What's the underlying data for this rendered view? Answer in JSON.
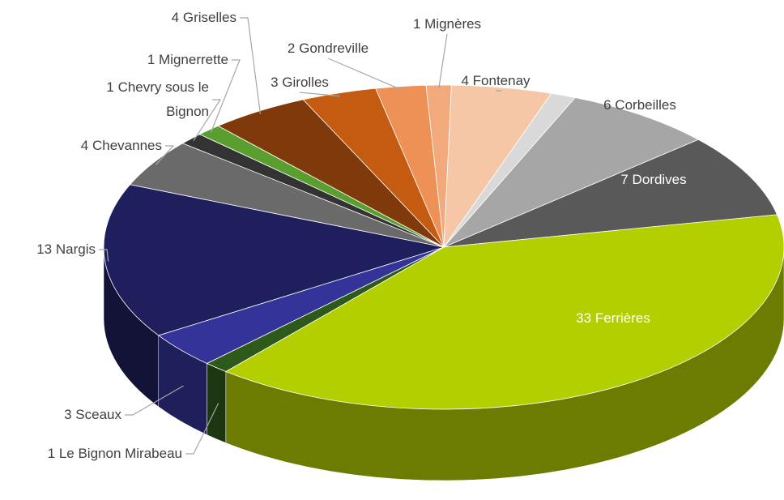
{
  "chart_data": {
    "type": "pie",
    "categories": [
      "Mignères",
      "Fontenay",
      null,
      "Corbeilles",
      "Dordives",
      "Ferrières",
      "Le Bignon Mirabeau",
      "Sceaux",
      "Nargis",
      "Chevannes",
      "Chevry sous le Bignon",
      "Mignerrette",
      "Griselles",
      "Girolles",
      "Gondreville"
    ],
    "values": [
      1,
      4,
      1,
      6,
      7,
      33,
      1,
      3,
      13,
      4,
      1,
      1,
      4,
      3,
      2
    ],
    "colors": [
      "#f2aa7c",
      "#f6c7a6",
      "#d9d9d9",
      "#a6a6a6",
      "#595959",
      "#b3cf00",
      "#2d5a1b",
      "#33339a",
      "#1f1f5e",
      "#6a6a6a",
      "#333333",
      "#5a9e2f",
      "#80390b",
      "#c55a11",
      "#ee9157"
    ]
  }
}
